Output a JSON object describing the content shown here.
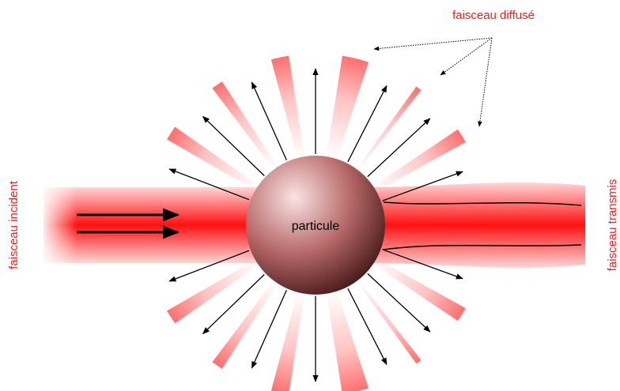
{
  "labels": {
    "scattered": "faisceau diffusé",
    "incident": "faisceau incident",
    "transmitted": "faisceau transmis",
    "particle": "particule"
  }
}
